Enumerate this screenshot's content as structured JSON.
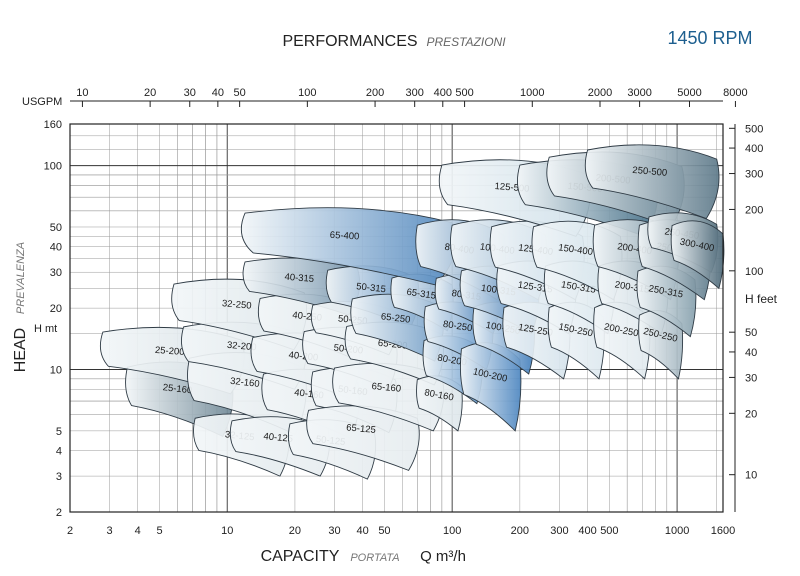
{
  "header": {
    "title": "PERFORMANCES",
    "subtitle": "PRESTAZIONI",
    "speed": "1450 RPM"
  },
  "chart_data": {
    "type": "area",
    "title": "PERFORMANCES",
    "subtitle": "PRESTAZIONI",
    "speed": "1450 RPM",
    "xlabel": "CAPACITY",
    "xlabel_sub": "PORTATA",
    "xunit": "Q m³/h",
    "ylabel": "HEAD",
    "ylabel_sub": "PREVALENZA",
    "yunit": "H mt",
    "y2unit": "H feet",
    "x2unit": "USGPM",
    "xscale": "log",
    "yscale": "log",
    "xlim": [
      2,
      1600
    ],
    "ylim": [
      2,
      160
    ],
    "grid": true,
    "x_ticks": [
      "2",
      "3",
      "4",
      "5",
      "10",
      "20",
      "30",
      "40",
      "50",
      "100",
      "200",
      "300",
      "400",
      "500",
      "1000",
      "1600"
    ],
    "x_tick_values": [
      2,
      3,
      4,
      5,
      10,
      20,
      30,
      40,
      50,
      100,
      200,
      300,
      400,
      500,
      1000,
      1600
    ],
    "y_ticks": [
      "2",
      "3",
      "4",
      "5",
      "10",
      "20",
      "30",
      "40",
      "50",
      "100",
      "160"
    ],
    "y_tick_values": [
      2,
      3,
      4,
      5,
      10,
      20,
      30,
      40,
      50,
      100,
      160
    ],
    "usgpm_ticks": [
      "10",
      "20",
      "30",
      "40",
      "50",
      "100",
      "200",
      "300",
      "400",
      "500",
      "1000",
      "2000",
      "3000",
      "5000",
      "8000"
    ],
    "usgpm_tick_values": [
      10,
      20,
      30,
      40,
      50,
      100,
      200,
      300,
      400,
      500,
      1000,
      2000,
      3000,
      5000,
      8000
    ],
    "feet_ticks": [
      "10",
      "20",
      "30",
      "40",
      "50",
      "100",
      "200",
      "300",
      "400",
      "500"
    ],
    "feet_tick_values": [
      10,
      20,
      30,
      40,
      50,
      100,
      200,
      300,
      400,
      500
    ],
    "series": [
      {
        "name": "25-160",
        "q": [
          3.6,
          10.4
        ],
        "h": [
          4.7,
          11.2
        ],
        "color": "#6f8896"
      },
      {
        "name": "25-200",
        "q": [
          2.8,
          11.6
        ],
        "h": [
          7.6,
          16.5
        ],
        "color": "#d9e2e6"
      },
      {
        "name": "32-125",
        "q": [
          7.2,
          18.5
        ],
        "h": [
          3.0,
          6.2
        ],
        "color": "#e4ebee"
      },
      {
        "name": "32-160",
        "q": [
          6.8,
          22.0
        ],
        "h": [
          4.8,
          12.5
        ],
        "color": "#e3eaed"
      },
      {
        "name": "32-200",
        "q": [
          6.4,
          22.0
        ],
        "h": [
          8.0,
          17.5
        ],
        "color": "#e0e8eb"
      },
      {
        "name": "32-250",
        "q": [
          5.8,
          22.0
        ],
        "h": [
          12.5,
          28.5
        ],
        "color": "#dde6ea"
      },
      {
        "name": "40-125",
        "q": [
          10.5,
          28.0
        ],
        "h": [
          3.0,
          6.0
        ],
        "color": "#e6ecef"
      },
      {
        "name": "40-160",
        "q": [
          14.5,
          38.0
        ],
        "h": [
          4.6,
          10.3
        ],
        "color": "#e6ecef"
      },
      {
        "name": "40-200",
        "q": [
          13.0,
          38.0
        ],
        "h": [
          7.2,
          15.5
        ],
        "color": "#e3eaed"
      },
      {
        "name": "40-250",
        "q": [
          14.0,
          38.0
        ],
        "h": [
          11.5,
          24.0
        ],
        "color": "#e0e8eb"
      },
      {
        "name": "40-315",
        "q": [
          12.0,
          38.0
        ],
        "h": [
          18.5,
          36.0
        ],
        "color": "#6f8fa8"
      },
      {
        "name": "50-125",
        "q": [
          19.0,
          45.0
        ],
        "h": [
          2.9,
          5.8
        ],
        "color": "#e6ecef"
      },
      {
        "name": "50-160",
        "q": [
          24.0,
          56.0
        ],
        "h": [
          4.9,
          10.5
        ],
        "color": "#e6ecef"
      },
      {
        "name": "50-200",
        "q": [
          22.0,
          56.0
        ],
        "h": [
          8.0,
          16.5
        ],
        "color": "#e3eaed"
      },
      {
        "name": "50-250",
        "q": [
          24.0,
          56.0
        ],
        "h": [
          11.8,
          22.0
        ],
        "color": "#e0e8eb"
      },
      {
        "name": "50-315",
        "q": [
          28.0,
          70.0
        ],
        "h": [
          16.0,
          33.0
        ],
        "color": "#5b8ec0"
      },
      {
        "name": "65-125",
        "q": [
          23.0,
          70.0
        ],
        "h": [
          3.2,
          6.8
        ],
        "color": "#e6ecef"
      },
      {
        "name": "65-160",
        "q": [
          30.0,
          90.0
        ],
        "h": [
          5.0,
          11.0
        ],
        "color": "#e6ecef"
      },
      {
        "name": "65-200",
        "q": [
          34.0,
          90.0
        ],
        "h": [
          8.4,
          17.5
        ],
        "color": "#e3eaed"
      },
      {
        "name": "65-250",
        "q": [
          36.0,
          90.0
        ],
        "h": [
          11.0,
          24.0
        ],
        "color": "#6a98c4"
      },
      {
        "name": "65-315",
        "q": [
          54.0,
          100.0
        ],
        "h": [
          15.5,
          30.0
        ],
        "color": "#7aa2c8"
      },
      {
        "name": "65-400",
        "q": [
          12.0,
          100.0
        ],
        "h": [
          26.0,
          64.0
        ],
        "color": "#4f86bd"
      },
      {
        "name": "80-160",
        "q": [
          70.0,
          110.0
        ],
        "h": [
          5.0,
          9.5
        ],
        "color": "#dde6ea"
      },
      {
        "name": "80-200",
        "q": [
          75.0,
          135.0
        ],
        "h": [
          6.8,
          15.0
        ],
        "color": "#5b92c8"
      },
      {
        "name": "80-250",
        "q": [
          76.0,
          150.0
        ],
        "h": [
          10.0,
          22.0
        ],
        "color": "#5089c2"
      },
      {
        "name": "80-315",
        "q": [
          85.0,
          160.0
        ],
        "h": [
          15.0,
          30.0
        ],
        "color": "#2f6fb0"
      },
      {
        "name": "80-400",
        "q": [
          70.0,
          170.0
        ],
        "h": [
          22.0,
          56.0
        ],
        "color": "#6893bd"
      },
      {
        "name": "100-200",
        "q": [
          110.0,
          200.0
        ],
        "h": [
          5.0,
          14.0
        ],
        "color": "#4d86c0"
      },
      {
        "name": "100-250",
        "q": [
          125.0,
          230.0
        ],
        "h": [
          9.5,
          22.0
        ],
        "color": "#3f7cba"
      },
      {
        "name": "100-315",
        "q": [
          110.0,
          240.0
        ],
        "h": [
          15.0,
          33.0
        ],
        "color": "#2a6aab"
      },
      {
        "name": "100-400",
        "q": [
          100.0,
          260.0
        ],
        "h": [
          22.0,
          56.0
        ],
        "color": "#9fbdd6"
      },
      {
        "name": "125-250",
        "q": [
          170.0,
          330.0
        ],
        "h": [
          9.0,
          22.0
        ],
        "color": "#d5e3ec"
      },
      {
        "name": "125-315",
        "q": [
          160.0,
          350.0
        ],
        "h": [
          15.0,
          35.0
        ],
        "color": "#d6e4ee"
      },
      {
        "name": "125-400",
        "q": [
          150.0,
          380.0
        ],
        "h": [
          22.0,
          55.0
        ],
        "color": "#c8dbe8"
      },
      {
        "name": "125-500",
        "q": [
          90.0,
          400.0
        ],
        "h": [
          45.0,
          110.0
        ],
        "color": "#cfe0ea"
      },
      {
        "name": "150-250",
        "q": [
          270.0,
          470.0
        ],
        "h": [
          9.0,
          22.0
        ],
        "color": "#dde8ef"
      },
      {
        "name": "150-315",
        "q": [
          260.0,
          520.0
        ],
        "h": [
          15.0,
          35.0
        ],
        "color": "#d9e6ed"
      },
      {
        "name": "150-400",
        "q": [
          230.0,
          560.0
        ],
        "h": [
          22.0,
          55.0
        ],
        "color": "#d0e1ea"
      },
      {
        "name": "150-500",
        "q": [
          200.0,
          800.0
        ],
        "h": [
          45.0,
          110.0
        ],
        "color": "#3f6b84"
      },
      {
        "name": "200-250",
        "q": [
          430.0,
          750.0
        ],
        "h": [
          9.0,
          22.0
        ],
        "color": "#e0e9ee"
      },
      {
        "name": "200-315",
        "q": [
          450.0,
          900.0
        ],
        "h": [
          15.0,
          35.0
        ],
        "color": "#c6d5dd"
      },
      {
        "name": "200-400",
        "q": [
          430.0,
          1000.0
        ],
        "h": [
          22.0,
          56.0
        ],
        "color": "#7e98a6"
      },
      {
        "name": "200-500",
        "q": [
          270.0,
          1050.0
        ],
        "h": [
          50.0,
          120.0
        ],
        "color": "#6d8897"
      },
      {
        "name": "250-250",
        "q": [
          680.0,
          1050.0
        ],
        "h": [
          9.0,
          20.0
        ],
        "color": "#a5b7c1"
      },
      {
        "name": "250-315",
        "q": [
          670.0,
          1200.0
        ],
        "h": [
          14.5,
          33.0
        ],
        "color": "#86a0ad"
      },
      {
        "name": "250-400",
        "q": [
          680.0,
          1400.0
        ],
        "h": [
          22.0,
          56.0
        ],
        "color": "#5f7c8c"
      },
      {
        "name": "250-450",
        "q": [
          750.0,
          1500.0
        ],
        "h": [
          30.0,
          60.0
        ],
        "color": "#55717f"
      },
      {
        "name": "250-500",
        "q": [
          400.0,
          1500.0
        ],
        "h": [
          55.0,
          130.0
        ],
        "color": "#5e7a8a"
      },
      {
        "name": "300-400",
        "q": [
          950.0,
          1600.0
        ],
        "h": [
          25.0,
          55.0
        ],
        "color": "#4a6676"
      }
    ]
  }
}
